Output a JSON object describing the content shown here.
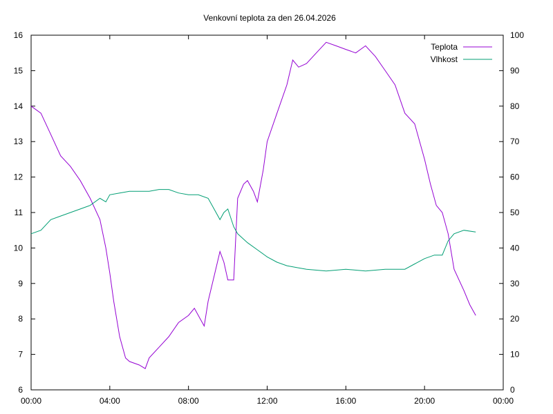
{
  "chart_data": {
    "type": "line",
    "title": "Venkovní teplota za den 26.04.2026",
    "xlabel": "",
    "ylabel": "",
    "y2label": "",
    "x_unit": "hours",
    "x_ticks": [
      {
        "value": 0,
        "label": "00:00"
      },
      {
        "value": 4,
        "label": "04:00"
      },
      {
        "value": 8,
        "label": "08:00"
      },
      {
        "value": 12,
        "label": "12:00"
      },
      {
        "value": 16,
        "label": "16:00"
      },
      {
        "value": 20,
        "label": "20:00"
      },
      {
        "value": 24,
        "label": "00:00"
      }
    ],
    "xlim": [
      0,
      24
    ],
    "ylim": [
      6,
      16
    ],
    "y_ticks": [
      "6",
      "7",
      "8",
      "9",
      "10",
      "11",
      "12",
      "13",
      "14",
      "15",
      "16"
    ],
    "y2lim": [
      0,
      100
    ],
    "y2_ticks": [
      "0",
      "10",
      "20",
      "30",
      "40",
      "50",
      "60",
      "70",
      "80",
      "90",
      "100"
    ],
    "grid": false,
    "legend": "top-right",
    "series": [
      {
        "name": "Teplota",
        "axis": "left",
        "color": "#9400d3",
        "x": [
          0,
          0.5,
          1,
          1.5,
          2,
          2.5,
          3,
          3.5,
          3.8,
          4,
          4.2,
          4.5,
          4.8,
          5,
          5.5,
          5.8,
          6,
          6.5,
          7,
          7.5,
          8,
          8.3,
          8.6,
          8.8,
          9,
          9.3,
          9.6,
          9.8,
          10,
          10.3,
          10.5,
          10.8,
          11,
          11.3,
          11.5,
          11.8,
          12,
          12.5,
          13,
          13.3,
          13.6,
          14,
          14.5,
          15,
          15.5,
          16,
          16.5,
          17,
          17.5,
          18,
          18.5,
          19,
          19.5,
          20,
          20.3,
          20.6,
          20.9,
          21.2,
          21.5,
          22,
          22.3,
          22.6
        ],
        "y": [
          14.0,
          13.8,
          13.2,
          12.6,
          12.3,
          11.9,
          11.4,
          10.8,
          10.0,
          9.3,
          8.5,
          7.5,
          6.9,
          6.8,
          6.7,
          6.6,
          6.9,
          7.2,
          7.5,
          7.9,
          8.1,
          8.3,
          8.0,
          7.8,
          8.5,
          9.2,
          9.9,
          9.6,
          9.1,
          9.1,
          11.4,
          11.8,
          11.9,
          11.6,
          11.3,
          12.2,
          13.0,
          13.8,
          14.6,
          15.3,
          15.1,
          15.2,
          15.5,
          15.8,
          15.7,
          15.6,
          15.5,
          15.7,
          15.4,
          15.0,
          14.6,
          13.8,
          13.5,
          12.5,
          11.8,
          11.2,
          11.0,
          10.4,
          9.4,
          8.8,
          8.4,
          8.1
        ]
      },
      {
        "name": "Vlhkost",
        "axis": "right",
        "color": "#009e73",
        "x": [
          0,
          0.5,
          1,
          1.5,
          2,
          2.5,
          3,
          3.5,
          3.8,
          4,
          4.5,
          5,
          5.5,
          6,
          6.5,
          7,
          7.5,
          8,
          8.5,
          9,
          9.3,
          9.6,
          9.8,
          10,
          10.3,
          10.5,
          11,
          11.5,
          12,
          12.5,
          13,
          13.5,
          14,
          15,
          16,
          17,
          18,
          19,
          19.5,
          20,
          20.5,
          20.9,
          21.2,
          21.5,
          22,
          22.6
        ],
        "y": [
          44,
          45,
          48,
          49,
          50,
          51,
          52,
          54,
          53,
          55,
          55.5,
          56,
          56,
          56,
          56.5,
          56.5,
          55.5,
          55,
          55,
          54,
          51,
          48,
          50,
          51,
          46,
          44,
          41.5,
          39.5,
          37.5,
          36,
          35,
          34.5,
          34,
          33.5,
          34,
          33.5,
          34,
          34,
          35.5,
          37,
          38,
          38,
          42,
          44,
          45,
          44.5
        ]
      }
    ]
  }
}
